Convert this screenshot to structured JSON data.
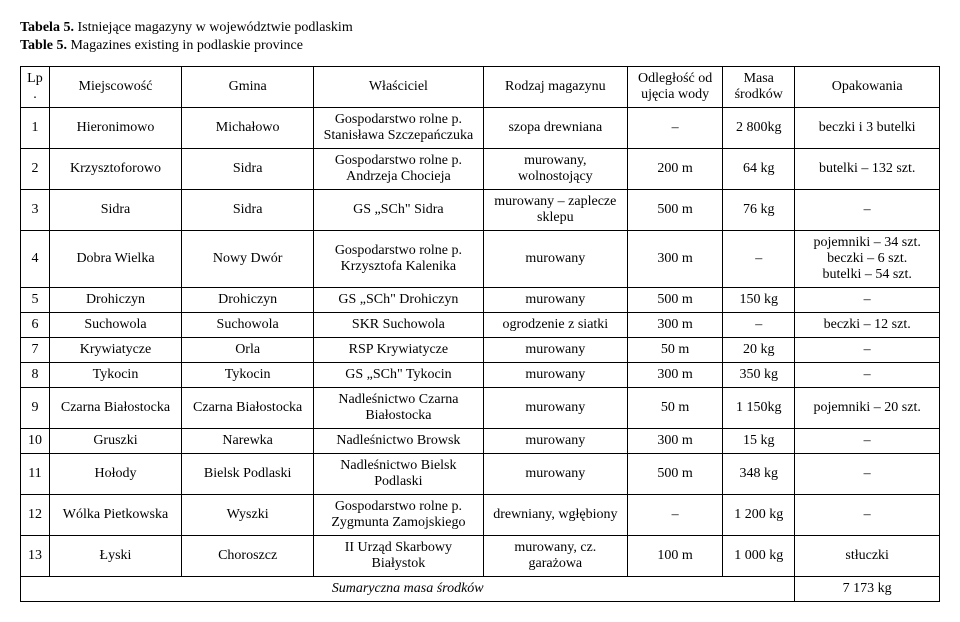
{
  "caption": {
    "pl_bold": "Tabela 5.",
    "pl_rest": " Istniejące magazyny w województwie podlaskim",
    "en_bold": "Table 5.",
    "en_rest": " Magazines existing in podlaskie province"
  },
  "headers": {
    "lp": "Lp.",
    "miejscowosc": "Miejscowość",
    "gmina": "Gmina",
    "wlasciciel": "Właściciel",
    "rodzaj": "Rodzaj magazynu",
    "odleglosc": "Odległość od ujęcia wody",
    "masa": "Masa środków",
    "opakowania": "Opakowania"
  },
  "rows": [
    {
      "lp": "1",
      "miejscowosc": "Hieronimowo",
      "gmina": "Michałowo",
      "wlasciciel": "Gospodarstwo rolne p. Stanisława Szczepańczuka",
      "rodzaj": "szopa drewniana",
      "odleglosc": "–",
      "masa": "2 800kg",
      "opakowania": "beczki i 3 butelki"
    },
    {
      "lp": "2",
      "miejscowosc": "Krzysztoforowo",
      "gmina": "Sidra",
      "wlasciciel": "Gospodarstwo rolne p. Andrzeja Chocieja",
      "rodzaj": "murowany, wolnostojący",
      "odleglosc": "200 m",
      "masa": "64 kg",
      "opakowania": "butelki – 132 szt."
    },
    {
      "lp": "3",
      "miejscowosc": "Sidra",
      "gmina": "Sidra",
      "wlasciciel": "GS „SCh\" Sidra",
      "rodzaj": "murowany – zaplecze sklepu",
      "odleglosc": "500 m",
      "masa": "76 kg",
      "opakowania": "–"
    },
    {
      "lp": "4",
      "miejscowosc": "Dobra Wielka",
      "gmina": "Nowy Dwór",
      "wlasciciel": "Gospodarstwo rolne p. Krzysztofa Kalenika",
      "rodzaj": "murowany",
      "odleglosc": "300 m",
      "masa": "–",
      "opakowania": "pojemniki – 34 szt.\nbeczki – 6 szt.\nbutelki – 54 szt."
    },
    {
      "lp": "5",
      "miejscowosc": "Drohiczyn",
      "gmina": "Drohiczyn",
      "wlasciciel": "GS „SCh\" Drohiczyn",
      "rodzaj": "murowany",
      "odleglosc": "500 m",
      "masa": "150 kg",
      "opakowania": "–"
    },
    {
      "lp": "6",
      "miejscowosc": "Suchowola",
      "gmina": "Suchowola",
      "wlasciciel": "SKR Suchowola",
      "rodzaj": "ogrodzenie z siatki",
      "odleglosc": "300 m",
      "masa": "–",
      "opakowania": "beczki – 12 szt."
    },
    {
      "lp": "7",
      "miejscowosc": "Krywiatycze",
      "gmina": "Orla",
      "wlasciciel": "RSP Krywiatycze",
      "rodzaj": "murowany",
      "odleglosc": "50 m",
      "masa": "20 kg",
      "opakowania": "–"
    },
    {
      "lp": "8",
      "miejscowosc": "Tykocin",
      "gmina": "Tykocin",
      "wlasciciel": "GS „SCh\" Tykocin",
      "rodzaj": "murowany",
      "odleglosc": "300 m",
      "masa": "350 kg",
      "opakowania": "–"
    },
    {
      "lp": "9",
      "miejscowosc": "Czarna Białostocka",
      "gmina": "Czarna Białostocka",
      "wlasciciel": "Nadleśnictwo Czarna Białostocka",
      "rodzaj": "murowany",
      "odleglosc": "50 m",
      "masa": "1 150kg",
      "opakowania": "pojemniki – 20 szt."
    },
    {
      "lp": "10",
      "miejscowosc": "Gruszki",
      "gmina": "Narewka",
      "wlasciciel": "Nadleśnictwo Browsk",
      "rodzaj": "murowany",
      "odleglosc": "300 m",
      "masa": "15 kg",
      "opakowania": "–"
    },
    {
      "lp": "11",
      "miejscowosc": "Hołody",
      "gmina": "Bielsk Podlaski",
      "wlasciciel": "Nadleśnictwo Bielsk Podlaski",
      "rodzaj": "murowany",
      "odleglosc": "500 m",
      "masa": "348 kg",
      "opakowania": "–"
    },
    {
      "lp": "12",
      "miejscowosc": "Wólka Pietkowska",
      "gmina": "Wyszki",
      "wlasciciel": "Gospodarstwo rolne p. Zygmunta Zamojskiego",
      "rodzaj": "drewniany, wgłębiony",
      "odleglosc": "–",
      "masa": "1 200 kg",
      "opakowania": "–"
    },
    {
      "lp": "13",
      "miejscowosc": "Łyski",
      "gmina": "Choroszcz",
      "wlasciciel": "II Urząd Skarbowy Białystok",
      "rodzaj": "murowany, cz. garażowa",
      "odleglosc": "100 m",
      "masa": "1 000 kg",
      "opakowania": "stłuczki"
    }
  ],
  "summary": {
    "label": "Sumaryczna masa środków",
    "value": "7 173 kg"
  }
}
